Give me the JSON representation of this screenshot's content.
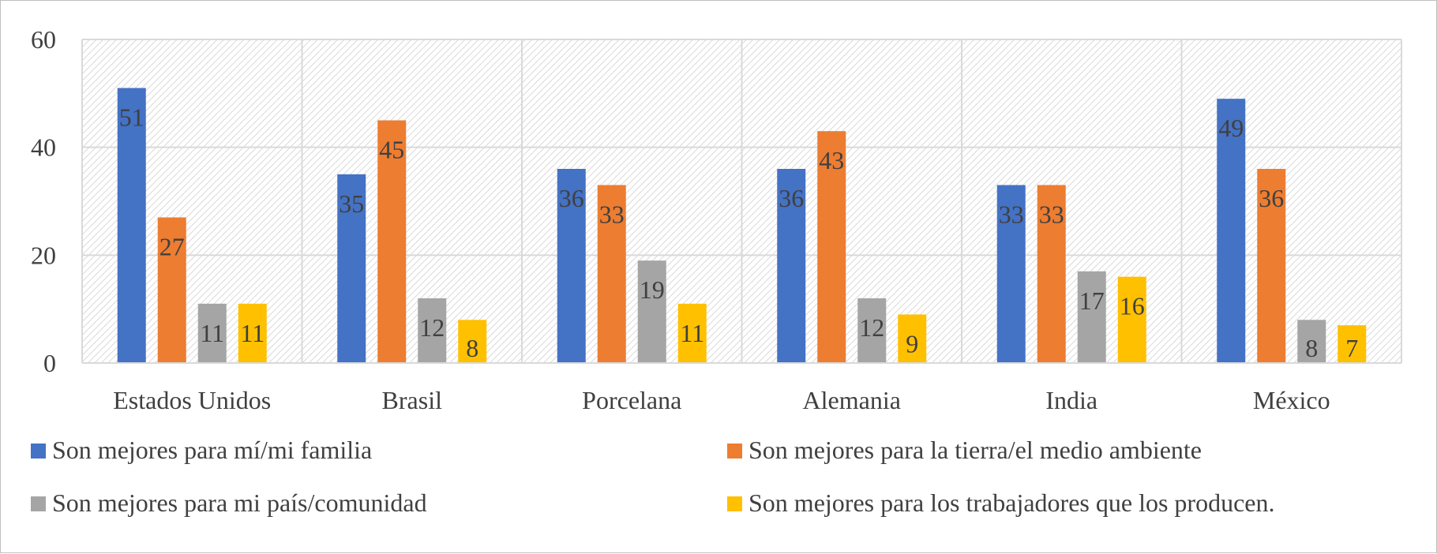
{
  "chart_data": {
    "type": "bar",
    "title": "",
    "xlabel": "",
    "ylabel": "",
    "ylim": [
      0,
      60
    ],
    "yticks": [
      0,
      20,
      40,
      60
    ],
    "grid": true,
    "legend_position": "bottom",
    "categories": [
      "Estados Unidos",
      "Brasil",
      "Porcelana",
      "Alemania",
      "India",
      "México"
    ],
    "series": [
      {
        "name": "Son mejores para mí/mi familia",
        "color": "#4472C4",
        "values": [
          51,
          35,
          36,
          36,
          33,
          49
        ]
      },
      {
        "name": "Son mejores para la tierra/el medio ambiente",
        "color": "#ED7D31",
        "values": [
          27,
          45,
          33,
          43,
          33,
          36
        ]
      },
      {
        "name": "Son mejores para mi país/comunidad",
        "color": "#A5A5A5",
        "values": [
          11,
          12,
          19,
          12,
          17,
          8
        ]
      },
      {
        "name": "Son mejores para los trabajadores que los producen.",
        "color": "#FFC000",
        "values": [
          11,
          8,
          11,
          9,
          16,
          7
        ]
      }
    ]
  }
}
